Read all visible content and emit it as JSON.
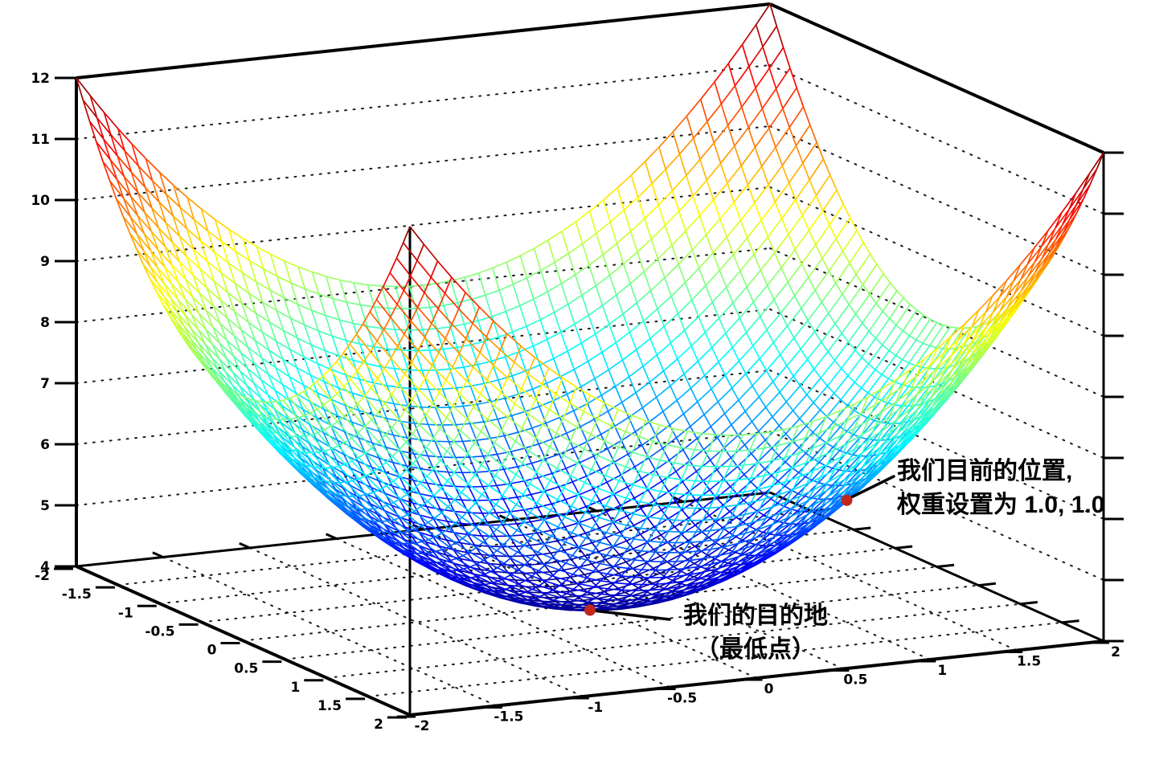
{
  "chart_data": {
    "type": "surface",
    "render_style": "wireframe",
    "title": "",
    "function": "z = x^2 + y^2 + 4",
    "colormap": "jet",
    "background": "#ffffff",
    "x_range": [
      -2,
      2
    ],
    "y_range": [
      -2,
      2
    ],
    "z_range": [
      4,
      12
    ],
    "x_ticks": [
      -2,
      -1.5,
      -1,
      -0.5,
      0,
      0.5,
      1,
      1.5,
      2
    ],
    "y_ticks": [
      -2,
      -1.5,
      -1,
      -0.5,
      0,
      0.5,
      1,
      1.5,
      2
    ],
    "z_ticks": [
      4,
      5,
      6,
      7,
      8,
      9,
      10,
      11,
      12
    ],
    "wall_grid_z_levels": [
      5,
      6,
      7,
      8,
      9,
      10,
      11
    ],
    "floor_grid_levels": [
      -1.5,
      -1,
      -0.5,
      0,
      0.5,
      1,
      1.5
    ],
    "grid_style": "dotted",
    "mesh_divisions": 50,
    "axis_color": "#000000",
    "grid_color": "#1c1c1c",
    "markers": [
      {
        "x": 1.0,
        "y": 1.0,
        "z": 6.0,
        "color": "#c1271b",
        "label_lines": [
          "我们目前的位置,",
          "权重设置为 1.0, 1.0"
        ]
      },
      {
        "x": 0.0,
        "y": 0.0,
        "z": 4.0,
        "color": "#c1271b",
        "label_lines": [
          "我们的目的地",
          "（最低点）"
        ]
      }
    ]
  }
}
